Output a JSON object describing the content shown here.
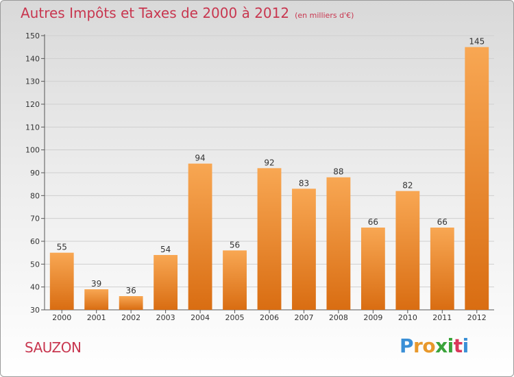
{
  "header": {
    "title": "Autres Impôts et Taxes de 2000 à 2012",
    "unit": "(en milliers d'€)"
  },
  "footer": {
    "place": "SAUZON",
    "brand_letters": [
      {
        "ch": "P",
        "color": "#3a8fd6"
      },
      {
        "ch": "r",
        "color": "#e8982b"
      },
      {
        "ch": "o",
        "color": "#e8982b"
      },
      {
        "ch": "x",
        "color": "#3aa33a"
      },
      {
        "ch": "i",
        "color": "#3aa33a"
      },
      {
        "ch": "t",
        "color": "#d9375a"
      },
      {
        "ch": "i",
        "color": "#3a8fd6"
      }
    ]
  },
  "colors": {
    "title": "#c8364f",
    "bar_top": "#f8a753",
    "bar_bottom": "#d96d12",
    "grid": "#cfcfcf"
  },
  "chart_data": {
    "type": "bar",
    "title": "Autres Impôts et Taxes de 2000 à 2012",
    "subtitle": "(en milliers d'€)",
    "xlabel": "",
    "ylabel": "",
    "categories": [
      "2000",
      "2001",
      "2002",
      "2003",
      "2004",
      "2005",
      "2006",
      "2007",
      "2008",
      "2009",
      "2010",
      "2011",
      "2012"
    ],
    "values": [
      55,
      39,
      36,
      54,
      94,
      56,
      92,
      83,
      88,
      66,
      82,
      66,
      145
    ],
    "ylim": [
      30,
      150
    ],
    "yticks": [
      30,
      40,
      50,
      60,
      70,
      80,
      90,
      100,
      110,
      120,
      130,
      140,
      150
    ],
    "grid": true,
    "data_labels": true
  }
}
